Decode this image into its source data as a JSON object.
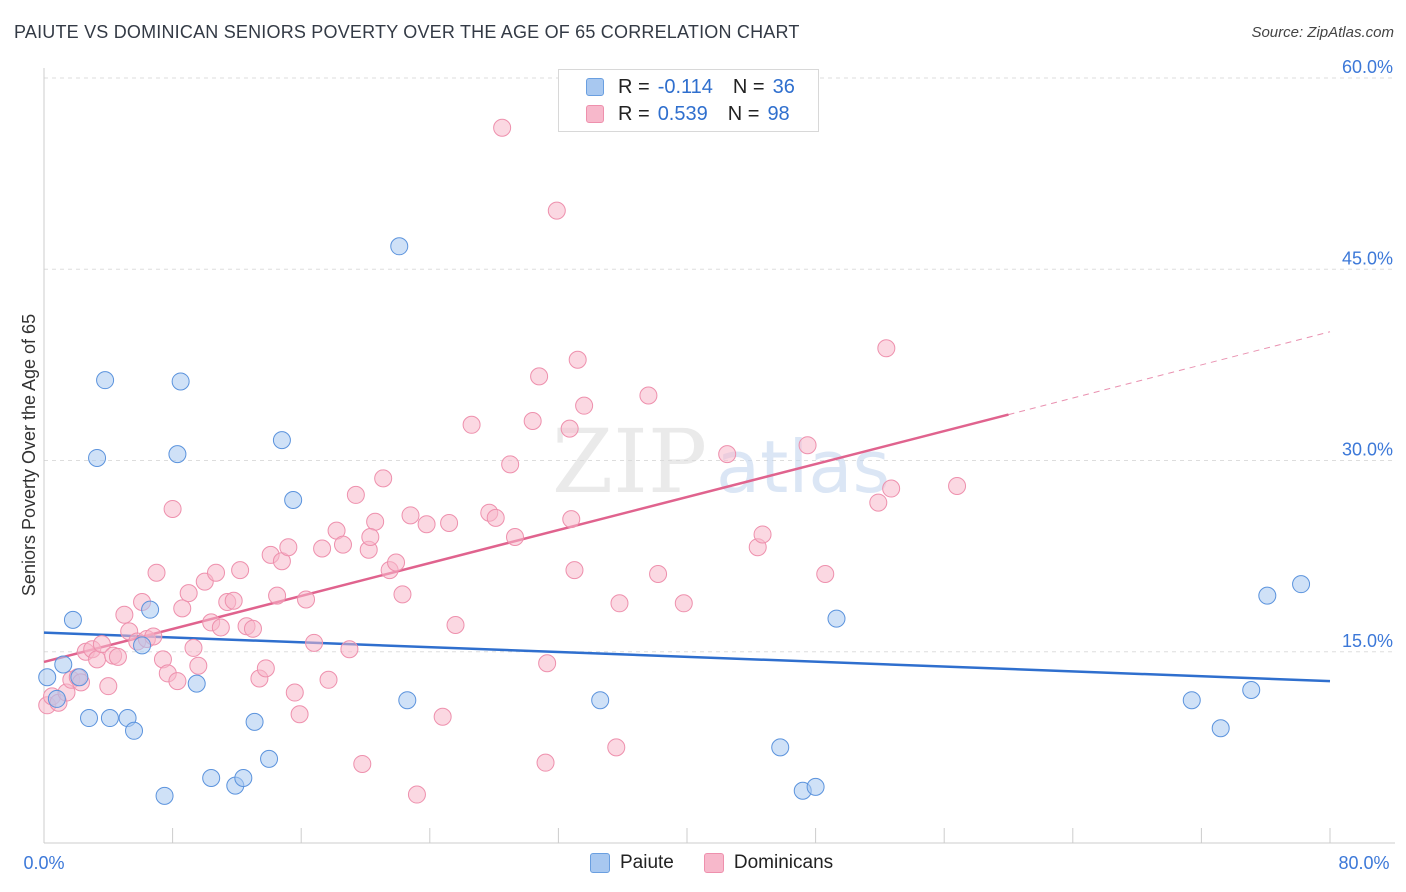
{
  "title": "PAIUTE VS DOMINICAN SENIORS POVERTY OVER THE AGE OF 65 CORRELATION CHART",
  "source": "Source: ZipAtlas.com",
  "watermark": {
    "zip": "ZIP",
    "atlas": "atlas"
  },
  "legend": {
    "rows": [
      {
        "r_label": "R =",
        "r_value": "-0.114",
        "n_label": "N =",
        "n_value": "36",
        "fill": "#a8c8f0",
        "stroke": "#6a9fe0"
      },
      {
        "r_label": "R =",
        "r_value": "0.539",
        "n_label": "N =",
        "n_value": "98",
        "fill": "#f7b8cb",
        "stroke": "#ee90ad"
      }
    ]
  },
  "bottom_legend": {
    "paiute": "Paiute",
    "dominicans": "Dominicans"
  },
  "colors": {
    "paiute_fill": "#a8c8f0",
    "paiute_stroke": "#5b93dd",
    "paiute_line": "#2f6fce",
    "dom_fill": "#f7b8cb",
    "dom_stroke": "#ee90ad",
    "dom_line": "#e0638e",
    "axis_text": "#3c78d8"
  },
  "chart_data": {
    "type": "scatter",
    "title": "PAIUTE VS DOMINICAN SENIORS POVERTY OVER THE AGE OF 65 CORRELATION CHART",
    "xlabel": "",
    "ylabel": "Seniors Poverty Over the Age of 65",
    "xlim": [
      0,
      80
    ],
    "ylim": [
      0,
      62
    ],
    "x_tick_labels": [
      "0.0%",
      "80.0%"
    ],
    "y_ticks": [
      15,
      30,
      45,
      60
    ],
    "y_tick_labels": [
      "15.0%",
      "30.0%",
      "45.0%",
      "60.0%"
    ],
    "grid": true,
    "series": [
      {
        "name": "Paiute",
        "points": [
          [
            0.2,
            13
          ],
          [
            0.8,
            11.3
          ],
          [
            1.2,
            14
          ],
          [
            1.8,
            17.5
          ],
          [
            2.2,
            13
          ],
          [
            2.8,
            9.8
          ],
          [
            3.3,
            30.2
          ],
          [
            3.8,
            36.3
          ],
          [
            4.1,
            9.8
          ],
          [
            5.2,
            9.8
          ],
          [
            5.6,
            8.8
          ],
          [
            6.1,
            15.5
          ],
          [
            6.6,
            18.3
          ],
          [
            7.5,
            3.7
          ],
          [
            8.3,
            30.5
          ],
          [
            8.5,
            36.2
          ],
          [
            9.5,
            12.5
          ],
          [
            10.4,
            5.1
          ],
          [
            11.9,
            4.5
          ],
          [
            12.4,
            5.1
          ],
          [
            13.1,
            9.5
          ],
          [
            14,
            6.6
          ],
          [
            14.8,
            31.6
          ],
          [
            15.5,
            26.9
          ],
          [
            22.1,
            46.8
          ],
          [
            22.6,
            11.2
          ],
          [
            34.6,
            11.2
          ],
          [
            45.8,
            7.5
          ],
          [
            47.2,
            4.1
          ],
          [
            48,
            4.4
          ],
          [
            49.3,
            17.6
          ],
          [
            71.4,
            11.2
          ],
          [
            73.2,
            9
          ],
          [
            75.1,
            12
          ],
          [
            76.1,
            19.4
          ],
          [
            78.2,
            20.3
          ]
        ],
        "trend": {
          "x": [
            0,
            80
          ],
          "y": [
            16.5,
            12.7
          ]
        }
      },
      {
        "name": "Dominicans",
        "points": [
          [
            0.2,
            10.8
          ],
          [
            0.5,
            11.5
          ],
          [
            0.9,
            11
          ],
          [
            1.4,
            11.8
          ],
          [
            1.7,
            12.8
          ],
          [
            2.1,
            13
          ],
          [
            2.3,
            12.6
          ],
          [
            2.6,
            15
          ],
          [
            3,
            15.2
          ],
          [
            3.3,
            14.4
          ],
          [
            3.6,
            15.6
          ],
          [
            4,
            12.3
          ],
          [
            4.3,
            14.7
          ],
          [
            4.6,
            14.6
          ],
          [
            5,
            17.9
          ],
          [
            5.3,
            16.6
          ],
          [
            5.8,
            15.8
          ],
          [
            6.1,
            18.9
          ],
          [
            6.4,
            16
          ],
          [
            6.8,
            16.2
          ],
          [
            7,
            21.2
          ],
          [
            7.4,
            14.4
          ],
          [
            7.7,
            13.3
          ],
          [
            8,
            26.2
          ],
          [
            8.3,
            12.7
          ],
          [
            8.6,
            18.4
          ],
          [
            9,
            19.6
          ],
          [
            9.3,
            15.3
          ],
          [
            9.6,
            13.9
          ],
          [
            10,
            20.5
          ],
          [
            10.4,
            17.3
          ],
          [
            10.7,
            21.2
          ],
          [
            11,
            16.9
          ],
          [
            11.4,
            18.9
          ],
          [
            11.8,
            19
          ],
          [
            12.2,
            21.4
          ],
          [
            12.6,
            17
          ],
          [
            13,
            16.8
          ],
          [
            13.4,
            12.9
          ],
          [
            13.8,
            13.7
          ],
          [
            14.1,
            22.6
          ],
          [
            14.5,
            19.4
          ],
          [
            14.8,
            22.1
          ],
          [
            15.2,
            23.2
          ],
          [
            15.6,
            11.8
          ],
          [
            15.9,
            10.1
          ],
          [
            16.3,
            19.1
          ],
          [
            16.8,
            15.7
          ],
          [
            17.3,
            23.1
          ],
          [
            17.7,
            12.8
          ],
          [
            18.2,
            24.5
          ],
          [
            18.6,
            23.4
          ],
          [
            19,
            15.2
          ],
          [
            19.4,
            27.3
          ],
          [
            19.8,
            6.2
          ],
          [
            20.2,
            23
          ],
          [
            20.6,
            25.2
          ],
          [
            21.1,
            28.6
          ],
          [
            21.5,
            21.4
          ],
          [
            21.9,
            22
          ],
          [
            22.3,
            19.5
          ],
          [
            22.8,
            25.7
          ],
          [
            23.2,
            3.8
          ],
          [
            23.8,
            25
          ],
          [
            24.8,
            9.9
          ],
          [
            25.2,
            25.1
          ],
          [
            25.6,
            17.1
          ],
          [
            26.6,
            32.8
          ],
          [
            27.7,
            25.9
          ],
          [
            28.1,
            25.5
          ],
          [
            29,
            29.7
          ],
          [
            29.3,
            24
          ],
          [
            30.4,
            33.1
          ],
          [
            30.8,
            36.6
          ],
          [
            31.2,
            6.3
          ],
          [
            31.3,
            14.1
          ],
          [
            31.9,
            49.6
          ],
          [
            32.7,
            32.5
          ],
          [
            32.8,
            25.4
          ],
          [
            33,
            21.4
          ],
          [
            33.2,
            37.9
          ],
          [
            33.6,
            34.3
          ],
          [
            35.6,
            7.5
          ],
          [
            35.8,
            18.8
          ],
          [
            37.6,
            35.1
          ],
          [
            38.2,
            21.1
          ],
          [
            39.8,
            18.8
          ],
          [
            42.5,
            30.5
          ],
          [
            44.4,
            23.2
          ],
          [
            44.7,
            24.2
          ],
          [
            47.5,
            31.2
          ],
          [
            48.6,
            21.1
          ],
          [
            51.9,
            26.7
          ],
          [
            52.4,
            38.8
          ],
          [
            52.7,
            27.8
          ],
          [
            56.8,
            28
          ],
          [
            28.5,
            56.1
          ],
          [
            20.3,
            24
          ]
        ],
        "trend": {
          "x": [
            0,
            60
          ],
          "y": [
            14.2,
            33.6
          ],
          "dashed_extension": {
            "x": [
              60,
              80
            ],
            "y": [
              33.6,
              40.1
            ]
          }
        }
      }
    ]
  }
}
